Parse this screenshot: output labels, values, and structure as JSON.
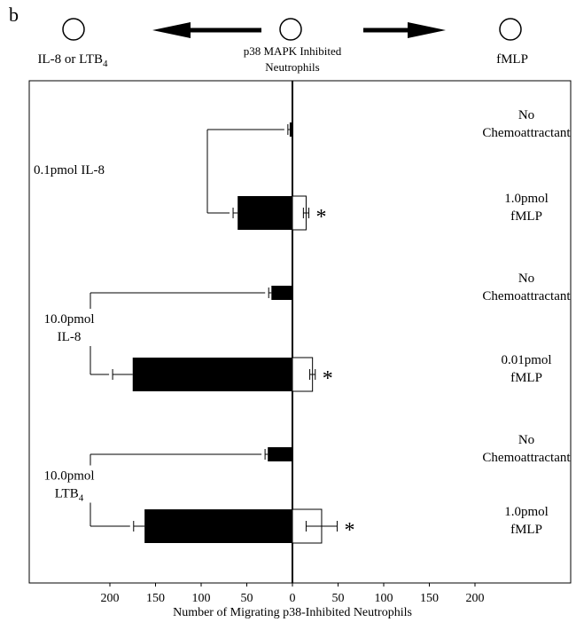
{
  "chart_data": {
    "type": "bar",
    "panel_letter": "b",
    "header": {
      "left_label": "IL-8 or LTB",
      "left_label_sub": "4",
      "center_label_line1": "p38 MAPK Inhibited",
      "center_label_line2": "Neutrophils",
      "right_label": "fMLP"
    },
    "xlabel": "Number of Migrating p38-Inhibited Neutrophils",
    "xlim": [
      -230,
      230
    ],
    "xticks": [
      {
        "value": -200,
        "label": "200"
      },
      {
        "value": -150,
        "label": "150"
      },
      {
        "value": -100,
        "label": "100"
      },
      {
        "value": -50,
        "label": "50"
      },
      {
        "value": 0,
        "label": "0"
      },
      {
        "value": 50,
        "label": "50"
      },
      {
        "value": 100,
        "label": "100"
      },
      {
        "value": 150,
        "label": "150"
      },
      {
        "value": 200,
        "label": "200"
      }
    ],
    "groups": [
      {
        "left_label_line1": "0.1pmol IL-8",
        "left_label_line2": "",
        "left_label_sub": "",
        "rows": [
          {
            "right_label_line1": "No",
            "right_label_line2": "Chemoattractant",
            "left_value": 3,
            "left_error": 2,
            "right_value": 0,
            "right_error": 0,
            "significant": false
          },
          {
            "right_label_line1": "1.0pmol",
            "right_label_line2": "fMLP",
            "left_value": 60,
            "left_error": 5,
            "right_value": 15,
            "right_error": 3,
            "significant": true
          }
        ]
      },
      {
        "left_label_line1": "10.0pmol",
        "left_label_line2": "IL-8",
        "left_label_sub": "",
        "rows": [
          {
            "right_label_line1": "No",
            "right_label_line2": "Chemoattractant",
            "left_value": 23,
            "left_error": 3,
            "right_value": 0,
            "right_error": 0,
            "significant": false
          },
          {
            "right_label_line1": "0.01pmol",
            "right_label_line2": "fMLP",
            "left_value": 175,
            "left_error": 22,
            "right_value": 22,
            "right_error": 3,
            "significant": true
          }
        ]
      },
      {
        "left_label_line1": "10.0pmol",
        "left_label_line2": "LTB",
        "left_label_sub": "4",
        "rows": [
          {
            "right_label_line1": "No",
            "right_label_line2": "Chemoattractant",
            "left_value": 27,
            "left_error": 3,
            "right_value": 0,
            "right_error": 0,
            "significant": false
          },
          {
            "right_label_line1": "1.0pmol",
            "right_label_line2": "fMLP",
            "left_value": 162,
            "left_error": 12,
            "right_value": 32,
            "right_error": 17,
            "significant": true
          }
        ]
      }
    ],
    "significance_marker": "*",
    "colors": {
      "left_bars": "#000000",
      "right_bars": "#ffffff",
      "axis": "#000000"
    }
  }
}
